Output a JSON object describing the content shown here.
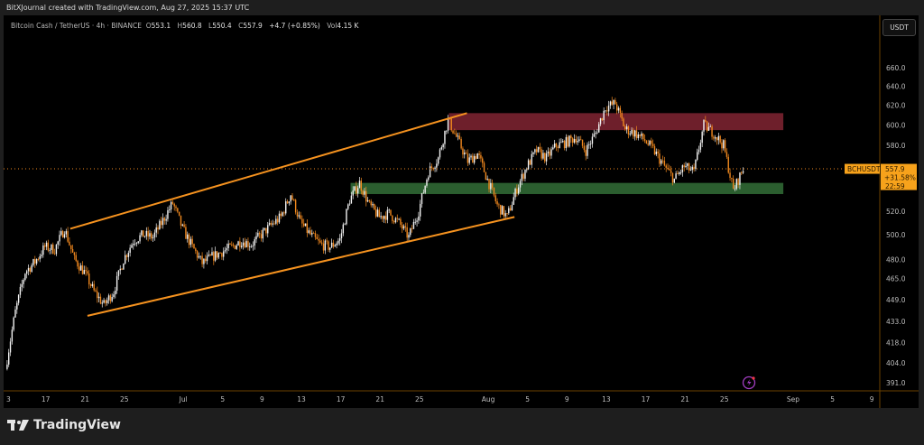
{
  "header": {
    "credit": "BitXJournal created with TradingView.com, Aug 27, 2025 15:37 UTC",
    "symbol_desc": "Bitcoin Cash / TetherUS · 4h · BINANCE",
    "ohlc": {
      "o_label": "O",
      "o": "553.1",
      "h_label": "H",
      "h": "560.8",
      "l_label": "L",
      "l": "550.4",
      "c_label": "C",
      "c": "557.9"
    },
    "change": "+4.7 (+0.85%)",
    "vol_label": "Vol",
    "vol": "4.15 K"
  },
  "currency_button": "USDT",
  "price_label": {
    "symbol": "BCHUSDT",
    "price": "557.9",
    "change": "+31.58%",
    "countdown": "22:59"
  },
  "footer": {
    "brand": "TradingView"
  },
  "colors": {
    "up": "#f2f2f2",
    "down": "#f2891e",
    "resistance_zone": "#6e1f2b",
    "support_zone": "#2b5e2f",
    "channel": "#f5921f",
    "label_bg": "#f7a21b",
    "background": "#000000"
  },
  "icons": {
    "alert": "lightning-bolt-icon",
    "logo": "tradingview-logo-icon"
  },
  "chart_data": {
    "type": "candlestick",
    "interval": "4h",
    "scale": "log",
    "ylim": [
      385,
      680
    ],
    "xlim": [
      "2025-06-13",
      "2025-09-10"
    ],
    "y_ticks": [
      "660.0",
      "640.0",
      "620.0",
      "600.0",
      "580.0",
      "520.0",
      "500.0",
      "480.0",
      "465.0",
      "449.0",
      "433.0",
      "418.0",
      "404.0",
      "391.0"
    ],
    "x_ticks": [
      {
        "date": "2025-06-13",
        "label": "3"
      },
      {
        "date": "2025-06-17",
        "label": "17"
      },
      {
        "date": "2025-06-21",
        "label": "21"
      },
      {
        "date": "2025-06-25",
        "label": "25"
      },
      {
        "date": "2025-07-01",
        "label": "Jul"
      },
      {
        "date": "2025-07-05",
        "label": "5"
      },
      {
        "date": "2025-07-09",
        "label": "9"
      },
      {
        "date": "2025-07-13",
        "label": "13"
      },
      {
        "date": "2025-07-17",
        "label": "17"
      },
      {
        "date": "2025-07-21",
        "label": "21"
      },
      {
        "date": "2025-07-25",
        "label": "25"
      },
      {
        "date": "2025-08-01",
        "label": "Aug"
      },
      {
        "date": "2025-08-05",
        "label": "5"
      },
      {
        "date": "2025-08-09",
        "label": "9"
      },
      {
        "date": "2025-08-13",
        "label": "13"
      },
      {
        "date": "2025-08-17",
        "label": "17"
      },
      {
        "date": "2025-08-21",
        "label": "21"
      },
      {
        "date": "2025-08-25",
        "label": "25"
      },
      {
        "date": "2025-09-01",
        "label": "Sep"
      },
      {
        "date": "2025-09-05",
        "label": "5"
      },
      {
        "date": "2025-09-09",
        "label": "9"
      }
    ],
    "approx_price_path": [
      [
        "2025-06-13",
        400
      ],
      [
        "2025-06-14",
        440
      ],
      [
        "2025-06-15",
        470
      ],
      [
        "2025-06-16",
        478
      ],
      [
        "2025-06-17",
        490
      ],
      [
        "2025-06-18",
        488
      ],
      [
        "2025-06-19",
        505
      ],
      [
        "2025-06-20",
        480
      ],
      [
        "2025-06-21",
        470
      ],
      [
        "2025-06-22",
        455
      ],
      [
        "2025-06-23",
        445
      ],
      [
        "2025-06-24",
        455
      ],
      [
        "2025-06-25",
        480
      ],
      [
        "2025-06-26",
        495
      ],
      [
        "2025-06-27",
        500
      ],
      [
        "2025-06-28",
        498
      ],
      [
        "2025-06-29",
        512
      ],
      [
        "2025-06-30",
        527
      ],
      [
        "2025-07-01",
        505
      ],
      [
        "2025-07-02",
        490
      ],
      [
        "2025-07-03",
        477
      ],
      [
        "2025-07-04",
        482
      ],
      [
        "2025-07-05",
        486
      ],
      [
        "2025-07-06",
        490
      ],
      [
        "2025-07-07",
        495
      ],
      [
        "2025-07-08",
        492
      ],
      [
        "2025-07-09",
        500
      ],
      [
        "2025-07-10",
        508
      ],
      [
        "2025-07-11",
        515
      ],
      [
        "2025-07-12",
        535
      ],
      [
        "2025-07-13",
        510
      ],
      [
        "2025-07-14",
        500
      ],
      [
        "2025-07-15",
        492
      ],
      [
        "2025-07-16",
        490
      ],
      [
        "2025-07-17",
        496
      ],
      [
        "2025-07-18",
        530
      ],
      [
        "2025-07-19",
        545
      ],
      [
        "2025-07-20",
        525
      ],
      [
        "2025-07-21",
        515
      ],
      [
        "2025-07-22",
        518
      ],
      [
        "2025-07-23",
        510
      ],
      [
        "2025-07-24",
        498
      ],
      [
        "2025-07-25",
        520
      ],
      [
        "2025-07-26",
        555
      ],
      [
        "2025-07-27",
        568
      ],
      [
        "2025-07-28",
        605
      ],
      [
        "2025-07-29",
        585
      ],
      [
        "2025-07-30",
        565
      ],
      [
        "2025-07-31",
        572
      ],
      [
        "2025-08-01",
        548
      ],
      [
        "2025-08-02",
        525
      ],
      [
        "2025-08-03",
        515
      ],
      [
        "2025-08-04",
        540
      ],
      [
        "2025-08-05",
        560
      ],
      [
        "2025-08-06",
        575
      ],
      [
        "2025-08-07",
        568
      ],
      [
        "2025-08-08",
        580
      ],
      [
        "2025-08-09",
        583
      ],
      [
        "2025-08-10",
        588
      ],
      [
        "2025-08-11",
        575
      ],
      [
        "2025-08-12",
        592
      ],
      [
        "2025-08-13",
        618
      ],
      [
        "2025-08-14",
        622
      ],
      [
        "2025-08-15",
        596
      ],
      [
        "2025-08-16",
        592
      ],
      [
        "2025-08-17",
        585
      ],
      [
        "2025-08-18",
        574
      ],
      [
        "2025-08-19",
        560
      ],
      [
        "2025-08-20",
        548
      ],
      [
        "2025-08-21",
        560
      ],
      [
        "2025-08-22",
        555
      ],
      [
        "2025-08-23",
        600
      ],
      [
        "2025-08-24",
        592
      ],
      [
        "2025-08-25",
        580
      ],
      [
        "2025-08-26",
        538
      ],
      [
        "2025-08-27",
        557.9
      ]
    ],
    "zones": [
      {
        "kind": "resistance",
        "from": "2025-07-28",
        "to": "2025-08-31",
        "low": 595,
        "high": 612
      },
      {
        "kind": "support",
        "from": "2025-07-18",
        "to": "2025-08-31",
        "low": 535,
        "high": 545
      }
    ],
    "channel_lines": [
      {
        "from": [
          "2025-06-19 12:00",
          505
        ],
        "to": [
          "2025-07-29 20:00",
          612
        ]
      },
      {
        "from": [
          "2025-06-21 06:00",
          437
        ],
        "to": [
          "2025-08-03 16:00",
          515
        ]
      }
    ],
    "last_price": 557.9
  }
}
